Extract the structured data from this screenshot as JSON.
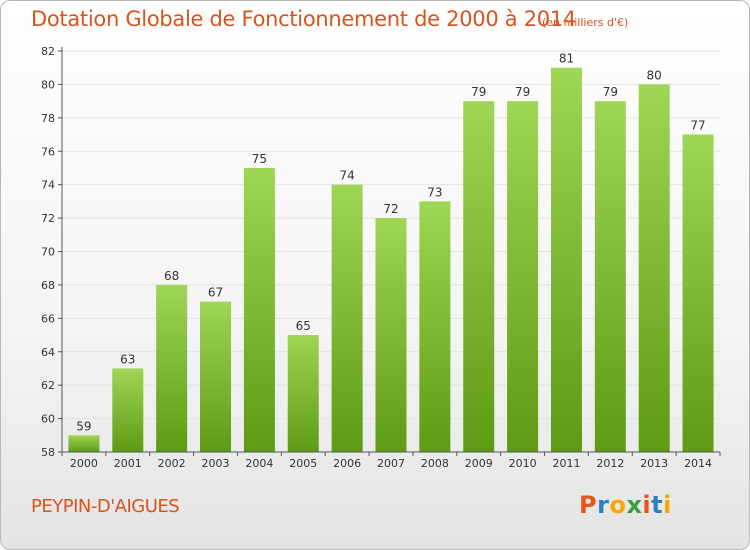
{
  "header": {
    "title": "Dotation Globale de Fonctionnement de 2000 à 2014",
    "subtitle": "(en milliers d'€)"
  },
  "footer": {
    "place": "PEYPIN-D'AIGUES",
    "logo_text": "Proxiti",
    "logo_colors": [
      "#e8531c",
      "#2a7fc4",
      "#f6a700",
      "#3a9e3a",
      "#e8531c",
      "#2a7fc4",
      "#f6a700"
    ]
  },
  "colors": {
    "bar_light": "#9fd655",
    "bar_dark": "#5e9a14",
    "grid": "#e2e2e2",
    "axis": "#555555",
    "label": "#333333"
  },
  "chart_data": {
    "type": "bar",
    "categories": [
      "2000",
      "2001",
      "2002",
      "2003",
      "2004",
      "2005",
      "2006",
      "2007",
      "2008",
      "2009",
      "2010",
      "2011",
      "2012",
      "2013",
      "2014"
    ],
    "values": [
      59,
      63,
      68,
      67,
      75,
      65,
      74,
      72,
      73,
      79,
      79,
      81,
      79,
      80,
      77
    ],
    "ylim": [
      58,
      82
    ],
    "yticks": [
      58,
      60,
      62,
      64,
      66,
      68,
      70,
      72,
      74,
      76,
      78,
      80,
      82
    ],
    "grid": true,
    "data_labels": true
  }
}
